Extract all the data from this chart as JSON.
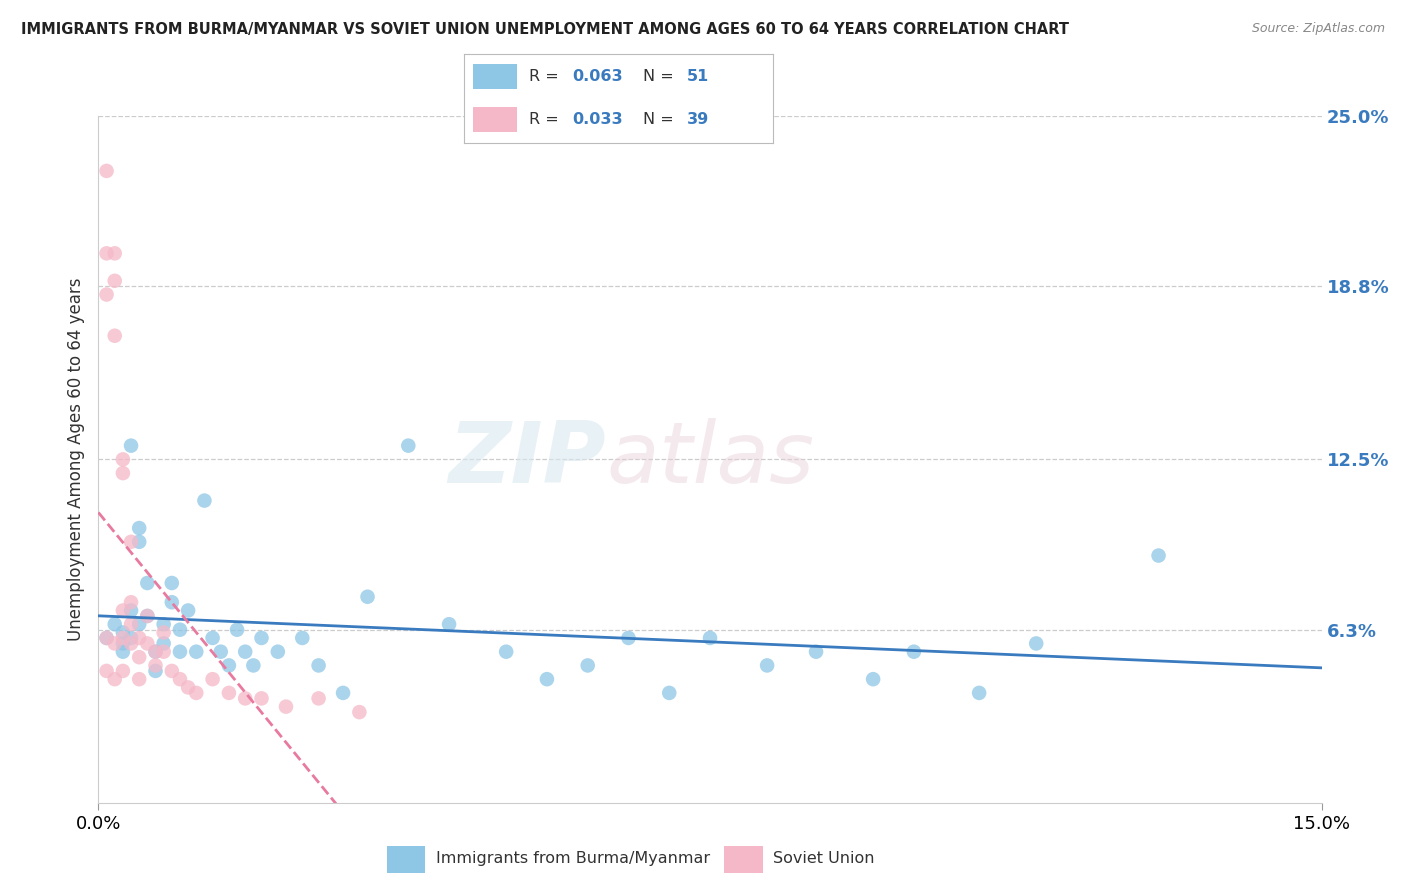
{
  "title": "IMMIGRANTS FROM BURMA/MYANMAR VS SOVIET UNION UNEMPLOYMENT AMONG AGES 60 TO 64 YEARS CORRELATION CHART",
  "source": "Source: ZipAtlas.com",
  "ylabel": "Unemployment Among Ages 60 to 64 years",
  "xlim": [
    0.0,
    0.15
  ],
  "ylim": [
    0.0,
    0.25
  ],
  "yticks_right": [
    0.063,
    0.125,
    0.188,
    0.25
  ],
  "ytick_labels_right": [
    "6.3%",
    "12.5%",
    "18.8%",
    "25.0%"
  ],
  "xtick_labels": [
    "0.0%",
    "15.0%"
  ],
  "xticks": [
    0.0,
    0.15
  ],
  "legend_r1": "0.063",
  "legend_n1": "51",
  "legend_r2": "0.033",
  "legend_n2": "39",
  "color_blue": "#8ec6e6",
  "color_pink": "#f5b8c8",
  "color_blue_line": "#3a7bbf",
  "color_pink_line": "#e87aa0",
  "blue_x": [
    0.001,
    0.002,
    0.003,
    0.003,
    0.003,
    0.004,
    0.004,
    0.004,
    0.005,
    0.005,
    0.005,
    0.006,
    0.006,
    0.007,
    0.007,
    0.008,
    0.008,
    0.009,
    0.009,
    0.01,
    0.01,
    0.011,
    0.012,
    0.013,
    0.014,
    0.015,
    0.016,
    0.017,
    0.018,
    0.019,
    0.02,
    0.022,
    0.025,
    0.027,
    0.03,
    0.033,
    0.038,
    0.043,
    0.05,
    0.055,
    0.06,
    0.065,
    0.07,
    0.075,
    0.082,
    0.088,
    0.095,
    0.1,
    0.108,
    0.115,
    0.13
  ],
  "blue_y": [
    0.06,
    0.065,
    0.058,
    0.062,
    0.055,
    0.13,
    0.07,
    0.06,
    0.1,
    0.095,
    0.065,
    0.08,
    0.068,
    0.055,
    0.048,
    0.065,
    0.058,
    0.08,
    0.073,
    0.055,
    0.063,
    0.07,
    0.055,
    0.11,
    0.06,
    0.055,
    0.05,
    0.063,
    0.055,
    0.05,
    0.06,
    0.055,
    0.06,
    0.05,
    0.04,
    0.075,
    0.13,
    0.065,
    0.055,
    0.045,
    0.05,
    0.06,
    0.04,
    0.06,
    0.05,
    0.055,
    0.045,
    0.055,
    0.04,
    0.058,
    0.09
  ],
  "pink_x": [
    0.001,
    0.001,
    0.001,
    0.001,
    0.001,
    0.002,
    0.002,
    0.002,
    0.002,
    0.002,
    0.003,
    0.003,
    0.003,
    0.003,
    0.003,
    0.004,
    0.004,
    0.004,
    0.004,
    0.005,
    0.005,
    0.005,
    0.006,
    0.006,
    0.007,
    0.007,
    0.008,
    0.008,
    0.009,
    0.01,
    0.011,
    0.012,
    0.014,
    0.016,
    0.018,
    0.02,
    0.023,
    0.027,
    0.032
  ],
  "pink_y": [
    0.23,
    0.2,
    0.185,
    0.06,
    0.048,
    0.2,
    0.19,
    0.17,
    0.058,
    0.045,
    0.125,
    0.12,
    0.07,
    0.06,
    0.048,
    0.095,
    0.073,
    0.065,
    0.058,
    0.06,
    0.053,
    0.045,
    0.068,
    0.058,
    0.055,
    0.05,
    0.062,
    0.055,
    0.048,
    0.045,
    0.042,
    0.04,
    0.045,
    0.04,
    0.038,
    0.038,
    0.035,
    0.038,
    0.033
  ],
  "watermark_zip": "ZIP",
  "watermark_atlas": "atlas",
  "background_color": "#ffffff",
  "grid_color": "#cccccc"
}
